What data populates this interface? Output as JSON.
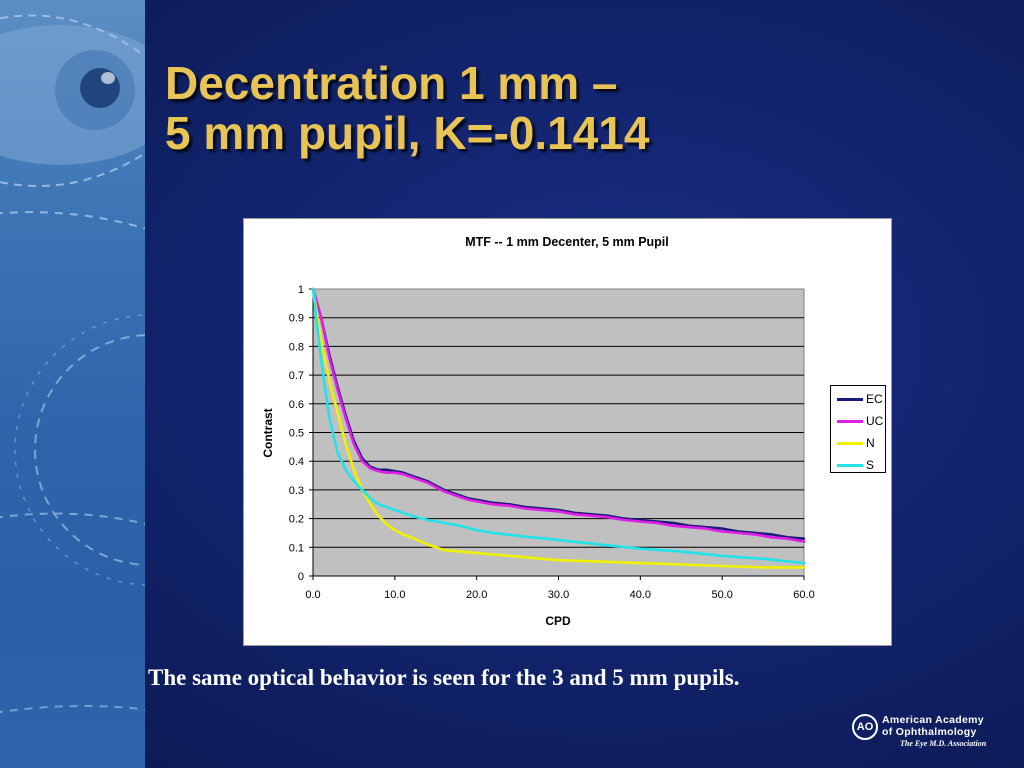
{
  "slide": {
    "title_line1": "Decentration 1 mm –",
    "title_line2": "5 mm pupil, K=-0.1414",
    "caption": "The same optical behavior is seen for the 3 and 5 mm pupils.",
    "title_color": "#e8c455"
  },
  "logo": {
    "mark": "AO",
    "name_line1": "American Academy",
    "name_line2": "of Ophthalmology",
    "tagline": "The Eye M.D. Association"
  },
  "chart_data": {
    "type": "line",
    "title": "MTF -- 1 mm Decenter, 5 mm Pupil",
    "xlabel": "CPD",
    "ylabel": "Contrast",
    "xlim": [
      0,
      60
    ],
    "ylim": [
      0,
      1
    ],
    "x_ticks": [
      "0.0",
      "10.0",
      "20.0",
      "30.0",
      "40.0",
      "50.0",
      "60.0"
    ],
    "y_ticks": [
      "0",
      "0.1",
      "0.2",
      "0.3",
      "0.4",
      "0.5",
      "0.6",
      "0.7",
      "0.8",
      "0.9",
      "1"
    ],
    "grid": "horizontal",
    "plot_background": "#c0c0c0",
    "legend_position": "right",
    "series": [
      {
        "name": "EC",
        "color": "#1a1a7a",
        "x": [
          0,
          1,
          2,
          3,
          4,
          5,
          6,
          7,
          8,
          9,
          10,
          11,
          12,
          13,
          14,
          15,
          16,
          17,
          18,
          19,
          20,
          22,
          24,
          26,
          28,
          30,
          32,
          34,
          36,
          38,
          40,
          42,
          44,
          46,
          48,
          50,
          52,
          54,
          56,
          58,
          60
        ],
        "y": [
          1.0,
          0.9,
          0.77,
          0.66,
          0.56,
          0.47,
          0.41,
          0.38,
          0.37,
          0.37,
          0.365,
          0.36,
          0.35,
          0.34,
          0.33,
          0.315,
          0.3,
          0.29,
          0.28,
          0.27,
          0.265,
          0.255,
          0.25,
          0.24,
          0.235,
          0.23,
          0.22,
          0.215,
          0.21,
          0.2,
          0.195,
          0.19,
          0.185,
          0.175,
          0.17,
          0.165,
          0.155,
          0.15,
          0.145,
          0.135,
          0.13
        ]
      },
      {
        "name": "UC",
        "color": "#e01ee6",
        "x": [
          0,
          1,
          2,
          3,
          4,
          5,
          6,
          7,
          8,
          9,
          10,
          11,
          12,
          13,
          14,
          15,
          16,
          17,
          18,
          19,
          20,
          22,
          24,
          26,
          28,
          30,
          32,
          34,
          36,
          38,
          40,
          42,
          44,
          46,
          48,
          50,
          52,
          54,
          56,
          58,
          60
        ],
        "y": [
          1.0,
          0.9,
          0.76,
          0.65,
          0.55,
          0.46,
          0.4,
          0.375,
          0.365,
          0.36,
          0.36,
          0.355,
          0.345,
          0.335,
          0.325,
          0.31,
          0.295,
          0.285,
          0.275,
          0.265,
          0.26,
          0.25,
          0.245,
          0.235,
          0.23,
          0.225,
          0.215,
          0.21,
          0.205,
          0.195,
          0.19,
          0.185,
          0.175,
          0.17,
          0.165,
          0.155,
          0.15,
          0.145,
          0.135,
          0.13,
          0.12
        ]
      },
      {
        "name": "N",
        "color": "#f0f000",
        "x": [
          0,
          1,
          2,
          3,
          4,
          5,
          6,
          7,
          8,
          9,
          10,
          11,
          12,
          14,
          16,
          18,
          20,
          22,
          24,
          26,
          28,
          30,
          35,
          40,
          45,
          50,
          55,
          60
        ],
        "y": [
          1.0,
          0.82,
          0.68,
          0.57,
          0.46,
          0.37,
          0.3,
          0.25,
          0.21,
          0.18,
          0.16,
          0.145,
          0.135,
          0.11,
          0.09,
          0.085,
          0.08,
          0.075,
          0.07,
          0.065,
          0.06,
          0.055,
          0.05,
          0.045,
          0.04,
          0.035,
          0.03,
          0.03
        ]
      },
      {
        "name": "S",
        "color": "#22e3e8",
        "x": [
          0,
          1,
          2,
          3,
          4,
          5,
          6,
          7,
          8,
          10,
          12,
          14,
          16,
          18,
          20,
          22,
          25,
          30,
          35,
          40,
          45,
          50,
          55,
          60
        ],
        "y": [
          1.0,
          0.75,
          0.55,
          0.43,
          0.37,
          0.33,
          0.3,
          0.27,
          0.25,
          0.23,
          0.21,
          0.195,
          0.185,
          0.175,
          0.16,
          0.15,
          0.14,
          0.125,
          0.11,
          0.095,
          0.085,
          0.07,
          0.06,
          0.045
        ]
      }
    ]
  }
}
